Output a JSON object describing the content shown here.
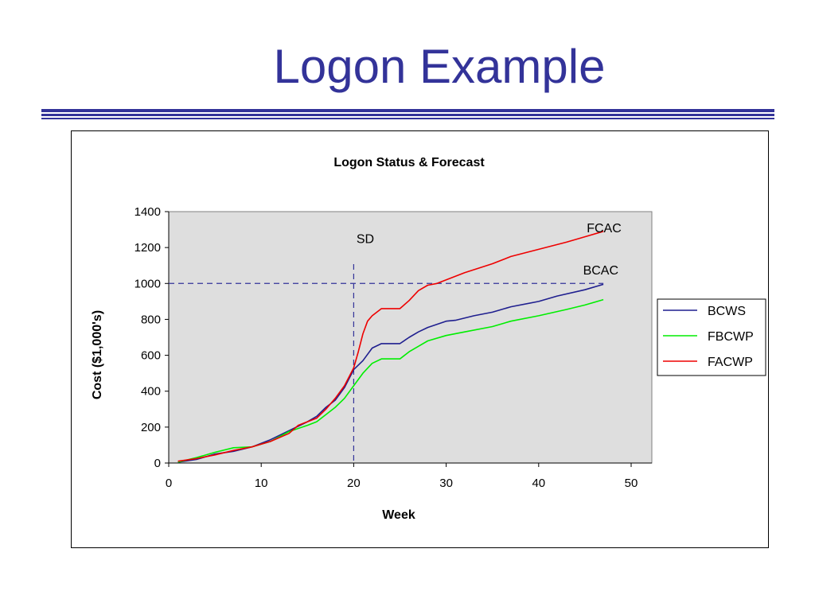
{
  "slide": {
    "title": "Logon Example"
  },
  "colors": {
    "title": "#333399",
    "plot_bg": "#dedede"
  },
  "chart_data": {
    "type": "line",
    "title": "Logon Status & Forecast",
    "xlabel": "Week",
    "ylabel": "Cost ($1,000's)",
    "xlim": [
      0,
      50
    ],
    "ylim": [
      0,
      1400
    ],
    "xticks": [
      0,
      10,
      20,
      30,
      40,
      50
    ],
    "yticks": [
      0,
      200,
      400,
      600,
      800,
      1000,
      1200,
      1400
    ],
    "grid": false,
    "legend_position": "right",
    "series": [
      {
        "name": "BCWS",
        "color": "#1f1f8f",
        "x": [
          1,
          3,
          5,
          7,
          9,
          11,
          13,
          15,
          16,
          17,
          18,
          19,
          20,
          21,
          22,
          23,
          24,
          25,
          26,
          27,
          28,
          30,
          31,
          33,
          35,
          37,
          40,
          42,
          45,
          47
        ],
        "y": [
          5,
          20,
          50,
          65,
          90,
          130,
          180,
          230,
          260,
          310,
          350,
          420,
          520,
          570,
          640,
          665,
          665,
          665,
          700,
          730,
          755,
          790,
          795,
          820,
          840,
          870,
          900,
          930,
          965,
          995
        ]
      },
      {
        "name": "FBCWP",
        "color": "#00ee00",
        "x": [
          1,
          3,
          5,
          7,
          9,
          11,
          13,
          15,
          16,
          17,
          18,
          19,
          20,
          21,
          22,
          23,
          24,
          25,
          26,
          27,
          28,
          30,
          32,
          35,
          37,
          40,
          43,
          45,
          47
        ],
        "y": [
          5,
          30,
          60,
          85,
          90,
          120,
          175,
          210,
          230,
          270,
          310,
          360,
          430,
          500,
          555,
          580,
          580,
          580,
          620,
          650,
          680,
          710,
          730,
          760,
          790,
          820,
          855,
          880,
          910
        ]
      },
      {
        "name": "FACWP",
        "color": "#ee0000",
        "x": [
          1,
          3,
          5,
          7,
          9,
          11,
          13,
          14,
          15,
          16,
          17,
          18,
          19,
          20,
          20.5,
          21,
          21.5,
          22,
          23,
          24,
          25,
          26,
          27,
          28,
          29,
          30,
          32,
          35,
          37,
          40,
          43,
          45,
          47
        ],
        "y": [
          10,
          25,
          45,
          70,
          90,
          120,
          165,
          210,
          230,
          250,
          300,
          360,
          430,
          530,
          620,
          720,
          790,
          820,
          860,
          860,
          860,
          905,
          960,
          990,
          1000,
          1020,
          1060,
          1110,
          1150,
          1190,
          1230,
          1260,
          1290
        ]
      }
    ],
    "reference_lines": [
      {
        "orientation": "horizontal",
        "value": 1000,
        "color": "#333399"
      },
      {
        "orientation": "vertical",
        "value": 20,
        "color": "#333399"
      }
    ],
    "annotations": [
      {
        "text": "SD",
        "x": 20.3,
        "y": 1225
      },
      {
        "text": "FCAC",
        "x": 45.2,
        "y": 1285
      },
      {
        "text": "BCAC",
        "x": 44.8,
        "y": 1050
      }
    ]
  }
}
